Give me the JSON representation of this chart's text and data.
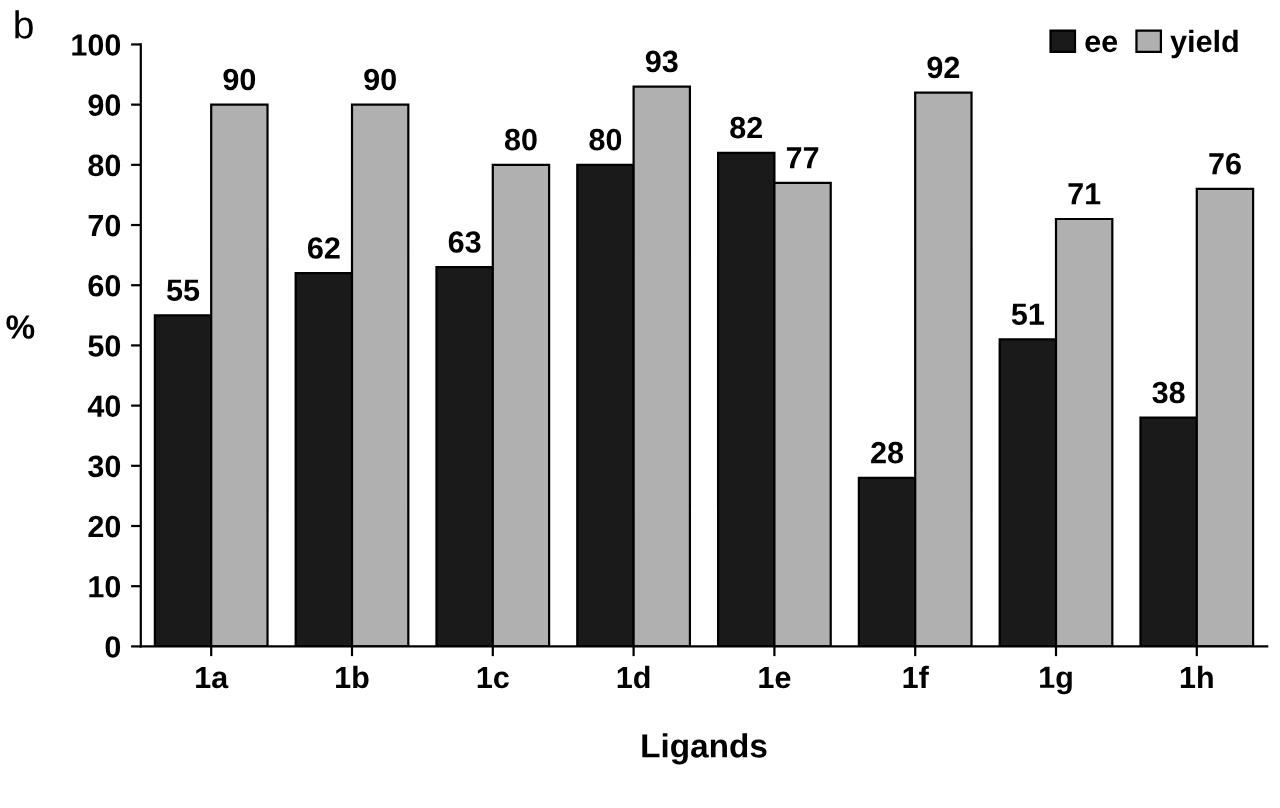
{
  "chart_data": {
    "type": "bar",
    "categories": [
      "1a",
      "1b",
      "1c",
      "1d",
      "1e",
      "1f",
      "1g",
      "1h"
    ],
    "series": [
      {
        "name": "ee",
        "color": "#1a1a1a",
        "values": [
          55,
          62,
          63,
          80,
          82,
          28,
          51,
          38
        ]
      },
      {
        "name": "yield",
        "color": "#b0b0b0",
        "values": [
          90,
          90,
          80,
          93,
          77,
          92,
          71,
          76
        ]
      }
    ],
    "xlabel": "Ligands",
    "ylabel": "%",
    "ylim": [
      0,
      100
    ],
    "yticks": [
      0,
      10,
      20,
      30,
      40,
      50,
      60,
      70,
      80,
      90,
      100
    ],
    "data_labels": true,
    "legend": "top right",
    "grid": false,
    "annotations": [
      "b"
    ]
  }
}
